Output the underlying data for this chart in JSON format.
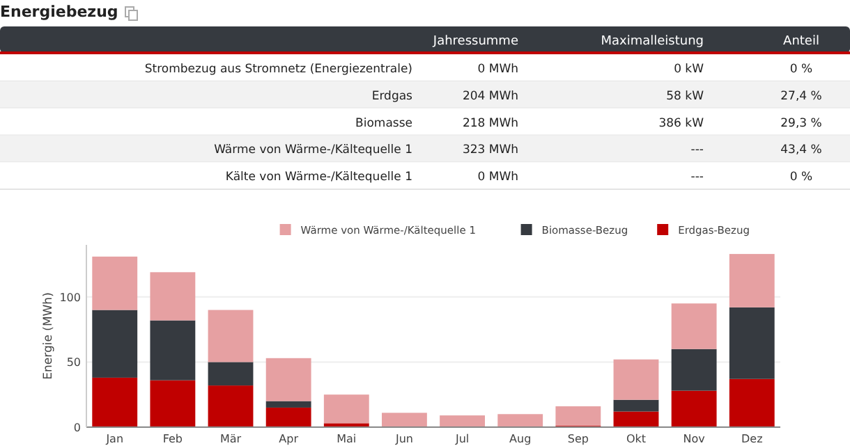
{
  "chart_data": [
    {
      "type": "other",
      "title": "Energiebezug",
      "categories": [
        "Jahressumme",
        "Maximalleistung",
        "Anteil"
      ],
      "y_categories": [
        "Strombezug aus Stromnetz (Energiezentrale)",
        "Erdgas",
        "Biomasse",
        "Wärme von Wärme-/Kältequelle 1",
        "Kälte von Wärme-/Kältequelle 1"
      ],
      "cell_labels": [
        [
          "0 MWh",
          "0 kW",
          "0 %"
        ],
        [
          "204 MWh",
          "58 kW",
          "27,4 %"
        ],
        [
          "218 MWh",
          "386 kW",
          "29,3 %"
        ],
        [
          "323 MWh",
          "---",
          "43,4 %"
        ],
        [
          "0 MWh",
          "---",
          "0 %"
        ]
      ]
    },
    {
      "type": "bar",
      "stacked": true,
      "ylabel": "Energie (MWh)",
      "categories": [
        "Jan",
        "Feb",
        "Mär",
        "Apr",
        "Mai",
        "Jun",
        "Jul",
        "Aug",
        "Sep",
        "Okt",
        "Nov",
        "Dez"
      ],
      "ylim": [
        0,
        140
      ],
      "yticks": [
        0,
        50,
        100
      ],
      "grid": "y",
      "legend": "top right",
      "series": [
        {
          "name": "Erdgas-Bezug",
          "color": "#c00000",
          "values": [
            38,
            36,
            32,
            15,
            3,
            0,
            0,
            0,
            1,
            12,
            28,
            37
          ]
        },
        {
          "name": "Biomasse-Bezug",
          "color": "#363a40",
          "values": [
            52,
            46,
            18,
            5,
            0,
            0,
            0,
            0,
            0,
            9,
            32,
            55
          ]
        },
        {
          "name": "Wärme von Wärme-/Kältequelle 1",
          "color": "#e6a0a2",
          "values": [
            41,
            37,
            40,
            33,
            22,
            11,
            9,
            10,
            15,
            31,
            35,
            41
          ]
        }
      ]
    }
  ]
}
